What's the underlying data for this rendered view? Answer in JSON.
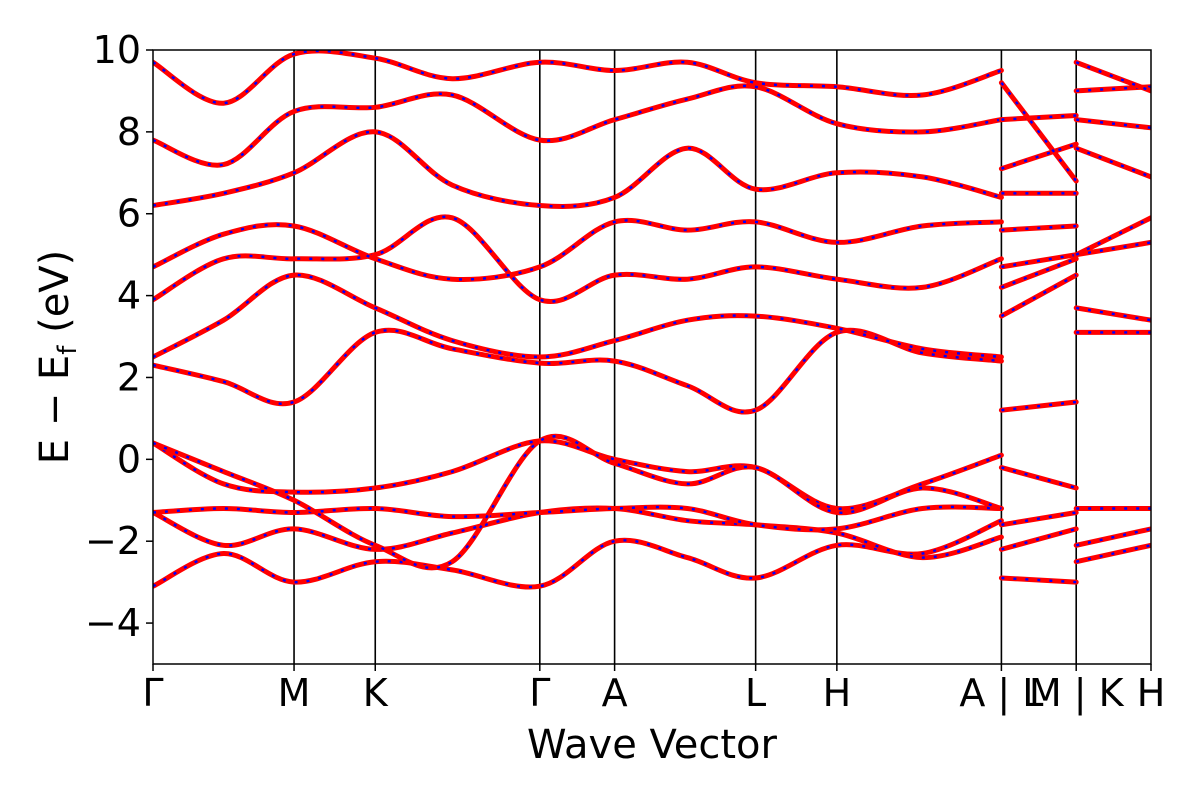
{
  "chart_data": {
    "type": "line",
    "xlabel": "Wave Vector",
    "ylabel": "E − E",
    "ylabel_sub": "f",
    "ylabel_unit": " (eV)",
    "ylim": [
      -5,
      10
    ],
    "yticks": [
      -4,
      -2,
      0,
      2,
      4,
      6,
      8,
      10
    ],
    "ytick_labels": [
      "−4",
      "−2",
      "0",
      "2",
      "4",
      "6",
      "8",
      "10"
    ],
    "grid": false,
    "colors": {
      "series_1": "#ff0000",
      "series_2": "#0000ff"
    },
    "kpoints": [
      {
        "label": "Γ",
        "x": 0.0
      },
      {
        "label": "M",
        "x": 0.66
      },
      {
        "label": "K",
        "x": 1.04
      },
      {
        "label": "Γ",
        "x": 1.81
      },
      {
        "label": "A",
        "x": 2.16
      },
      {
        "label": "L",
        "x": 2.82
      },
      {
        "label": "H",
        "x": 3.2
      },
      {
        "label": "A | L",
        "x": 3.97
      },
      {
        "label": "M | K",
        "x": 4.32
      },
      {
        "label": "H",
        "x": 4.67
      }
    ],
    "segment_breaks": [
      3.97,
      4.32
    ],
    "bands": [
      {
        "x": [
          0.0,
          0.33,
          0.66,
          1.04,
          1.4,
          1.81,
          2.16,
          2.5,
          2.82,
          3.2,
          3.6,
          3.97
        ],
        "y": [
          -3.1,
          -2.3,
          -3.0,
          -2.5,
          -2.7,
          -3.1,
          -2.0,
          -2.4,
          -2.9,
          -2.1,
          -2.3,
          -1.5
        ]
      },
      {
        "x": [
          0.0,
          0.33,
          0.66,
          1.04,
          1.4,
          1.81,
          2.16,
          2.5,
          2.82,
          3.2,
          3.6,
          3.97
        ],
        "y": [
          -1.3,
          -2.1,
          -1.7,
          -2.2,
          -1.8,
          -1.3,
          -1.2,
          -1.5,
          -1.6,
          -1.8,
          -2.4,
          -1.9
        ]
      },
      {
        "x": [
          0.0,
          0.33,
          0.66,
          1.04,
          1.4,
          1.81,
          2.16,
          2.5,
          2.82,
          3.2,
          3.6,
          3.97
        ],
        "y": [
          -1.3,
          -1.2,
          -1.3,
          -1.2,
          -1.4,
          -1.3,
          -1.2,
          -1.2,
          -1.6,
          -1.7,
          -1.2,
          -1.2
        ]
      },
      {
        "x": [
          0.0,
          0.33,
          0.66,
          1.04,
          1.4,
          1.81,
          2.16,
          2.5,
          2.82,
          3.2,
          3.6,
          3.97
        ],
        "y": [
          0.4,
          -0.6,
          -0.8,
          -0.7,
          -0.3,
          0.45,
          0.0,
          -0.3,
          -0.2,
          -1.2,
          -0.6,
          0.1
        ]
      },
      {
        "x": [
          0.0,
          0.33,
          0.66,
          1.04,
          1.4,
          1.81,
          2.16,
          2.5,
          2.82,
          3.2,
          3.6,
          3.97
        ],
        "y": [
          0.4,
          -0.3,
          -1.0,
          -2.1,
          -2.5,
          0.45,
          -0.1,
          -0.6,
          -0.2,
          -1.3,
          -0.7,
          -1.2
        ]
      },
      {
        "x": [
          0.0,
          0.33,
          0.66,
          1.04,
          1.4,
          1.81,
          2.16,
          2.5,
          2.82,
          3.2,
          3.6,
          3.97
        ],
        "y": [
          2.3,
          1.9,
          1.4,
          3.1,
          2.7,
          2.35,
          2.4,
          1.8,
          1.2,
          3.1,
          2.6,
          2.4
        ]
      },
      {
        "x": [
          0.0,
          0.33,
          0.66,
          1.04,
          1.4,
          1.81,
          2.16,
          2.5,
          2.82,
          3.2,
          3.6,
          3.97
        ],
        "y": [
          2.5,
          3.4,
          4.5,
          3.7,
          2.9,
          2.5,
          2.9,
          3.4,
          3.5,
          3.2,
          2.7,
          2.5
        ]
      },
      {
        "x": [
          0.0,
          0.33,
          0.66,
          1.04,
          1.4,
          1.81,
          2.16,
          2.5,
          2.82,
          3.2,
          3.6,
          3.97
        ],
        "y": [
          3.9,
          4.9,
          4.9,
          5.0,
          5.9,
          3.9,
          4.5,
          4.4,
          4.7,
          4.4,
          4.2,
          4.9
        ]
      },
      {
        "x": [
          0.0,
          0.33,
          0.66,
          1.04,
          1.4,
          1.81,
          2.16,
          2.5,
          2.82,
          3.2,
          3.6,
          3.97
        ],
        "y": [
          4.7,
          5.5,
          5.7,
          4.9,
          4.4,
          4.7,
          5.8,
          5.6,
          5.8,
          5.3,
          5.7,
          5.8
        ]
      },
      {
        "x": [
          0.0,
          0.33,
          0.66,
          1.04,
          1.4,
          1.81,
          2.16,
          2.5,
          2.82,
          3.2,
          3.6,
          3.97
        ],
        "y": [
          6.2,
          6.5,
          7.0,
          8.0,
          6.7,
          6.2,
          6.4,
          7.6,
          6.6,
          7.0,
          6.9,
          6.4
        ]
      },
      {
        "x": [
          0.0,
          0.33,
          0.66,
          1.04,
          1.4,
          1.81,
          2.16,
          2.5,
          2.82,
          3.2,
          3.6,
          3.97
        ],
        "y": [
          7.8,
          7.2,
          8.5,
          8.6,
          8.9,
          7.8,
          8.3,
          8.8,
          9.1,
          8.2,
          8.0,
          8.3
        ]
      },
      {
        "x": [
          0.0,
          0.33,
          0.66,
          1.04,
          1.4,
          1.81,
          2.16,
          2.5,
          2.82,
          3.2,
          3.6,
          3.97
        ],
        "y": [
          9.7,
          8.7,
          9.9,
          9.8,
          9.3,
          9.7,
          9.5,
          9.7,
          9.2,
          9.1,
          8.9,
          9.5
        ]
      },
      {
        "x": [
          3.97,
          4.32
        ],
        "y": [
          -2.9,
          -3.0
        ]
      },
      {
        "x": [
          3.97,
          4.32
        ],
        "y": [
          -2.2,
          -1.7
        ]
      },
      {
        "x": [
          3.97,
          4.32
        ],
        "y": [
          -1.6,
          -1.3
        ]
      },
      {
        "x": [
          3.97,
          4.32
        ],
        "y": [
          -0.2,
          -0.7
        ]
      },
      {
        "x": [
          3.97,
          4.32
        ],
        "y": [
          1.2,
          1.4
        ]
      },
      {
        "x": [
          3.97,
          4.32
        ],
        "y": [
          3.5,
          4.5
        ]
      },
      {
        "x": [
          3.97,
          4.32
        ],
        "y": [
          4.2,
          4.9
        ]
      },
      {
        "x": [
          3.97,
          4.32
        ],
        "y": [
          4.7,
          5.0
        ]
      },
      {
        "x": [
          3.97,
          4.32
        ],
        "y": [
          5.6,
          5.7
        ]
      },
      {
        "x": [
          3.97,
          4.32
        ],
        "y": [
          6.5,
          6.5
        ]
      },
      {
        "x": [
          3.97,
          4.32
        ],
        "y": [
          7.1,
          7.7
        ]
      },
      {
        "x": [
          3.97,
          4.32
        ],
        "y": [
          8.3,
          8.4
        ]
      },
      {
        "x": [
          3.97,
          4.32
        ],
        "y": [
          9.2,
          6.8
        ]
      },
      {
        "x": [
          4.32,
          4.67
        ],
        "y": [
          -2.5,
          -2.1
        ]
      },
      {
        "x": [
          4.32,
          4.67
        ],
        "y": [
          -2.1,
          -1.7
        ]
      },
      {
        "x": [
          4.32,
          4.67
        ],
        "y": [
          -1.2,
          -1.2
        ]
      },
      {
        "x": [
          4.32,
          4.67
        ],
        "y": [
          3.1,
          3.1
        ]
      },
      {
        "x": [
          4.32,
          4.67
        ],
        "y": [
          3.7,
          3.4
        ]
      },
      {
        "x": [
          4.32,
          4.67
        ],
        "y": [
          5.0,
          5.3
        ]
      },
      {
        "x": [
          4.32,
          4.67
        ],
        "y": [
          5.0,
          5.9
        ]
      },
      {
        "x": [
          4.32,
          4.67
        ],
        "y": [
          7.6,
          6.9
        ]
      },
      {
        "x": [
          4.32,
          4.67
        ],
        "y": [
          8.3,
          8.1
        ]
      },
      {
        "x": [
          4.32,
          4.67
        ],
        "y": [
          9.0,
          9.1
        ]
      },
      {
        "x": [
          4.32,
          4.67
        ],
        "y": [
          9.7,
          9.0
        ]
      }
    ]
  }
}
